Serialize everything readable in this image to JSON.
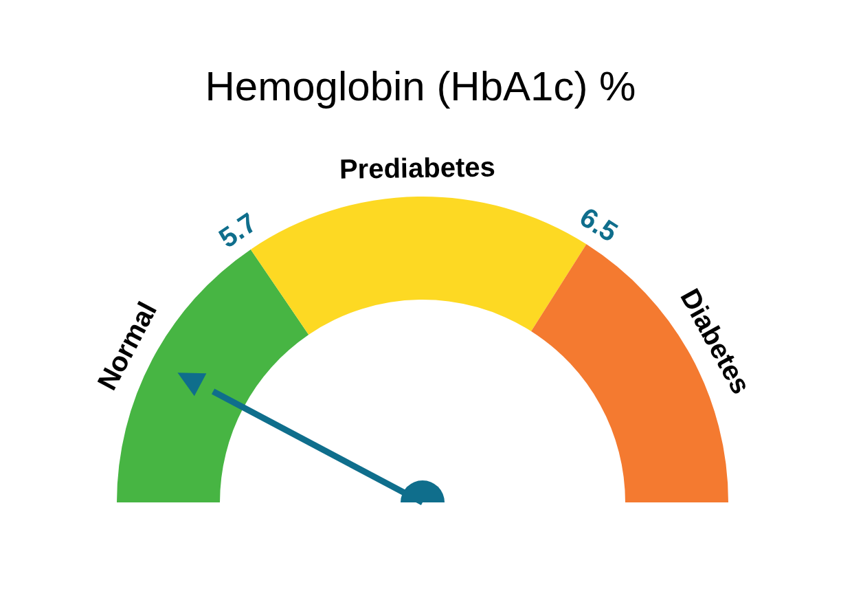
{
  "chart_data": {
    "type": "donut",
    "title": "Hemoglobin (HbA1c) %",
    "categories": [
      "Normal",
      "Prediabetes",
      "Diabetes"
    ],
    "values": [
      31,
      37,
      32
    ],
    "colors": [
      "#47b543",
      "#fdd923",
      "#f47a30"
    ],
    "needle": "Normal",
    "annotations": [
      "5.7",
      "6.5"
    ]
  }
}
